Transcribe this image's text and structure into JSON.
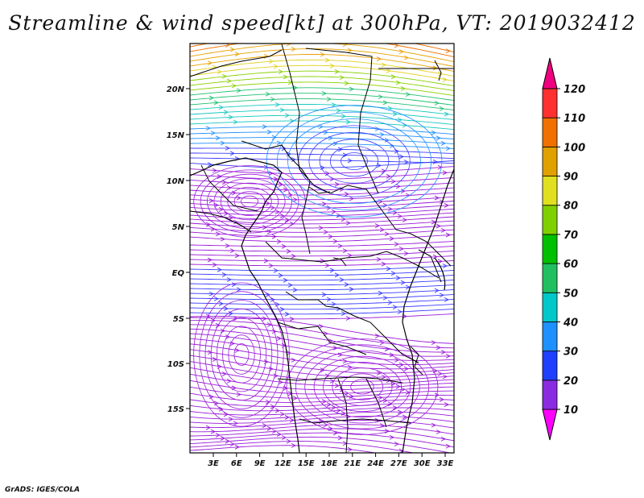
{
  "title": "Streamline & wind speed[kt] at 300hPa, VT: 2019032412",
  "credit": "GrADS: IGES/COLA",
  "map": {
    "type": "streamline-map",
    "lon_range": [
      0,
      35
    ],
    "lat_range": [
      -20,
      24
    ],
    "lat_ticks": [
      "20N",
      "15N",
      "10N",
      "5N",
      "EQ",
      "5S",
      "10S",
      "15S"
    ],
    "lon_ticks": [
      "3E",
      "6E",
      "9E",
      "12E",
      "15E",
      "18E",
      "21E",
      "24E",
      "27E",
      "30E",
      "33E"
    ]
  },
  "colorbar": {
    "label_values": [
      "120",
      "110",
      "100",
      "90",
      "80",
      "70",
      "60",
      "50",
      "40",
      "30",
      "20",
      "10"
    ],
    "colors": [
      "#f0f",
      "#8a2be2",
      "#1f3fff",
      "#1e90ff",
      "#00c8c8",
      "#20c060",
      "#00c000",
      "#80d000",
      "#e0e020",
      "#e0a000",
      "#f07000",
      "#ff3030",
      "#f0007f"
    ]
  }
}
